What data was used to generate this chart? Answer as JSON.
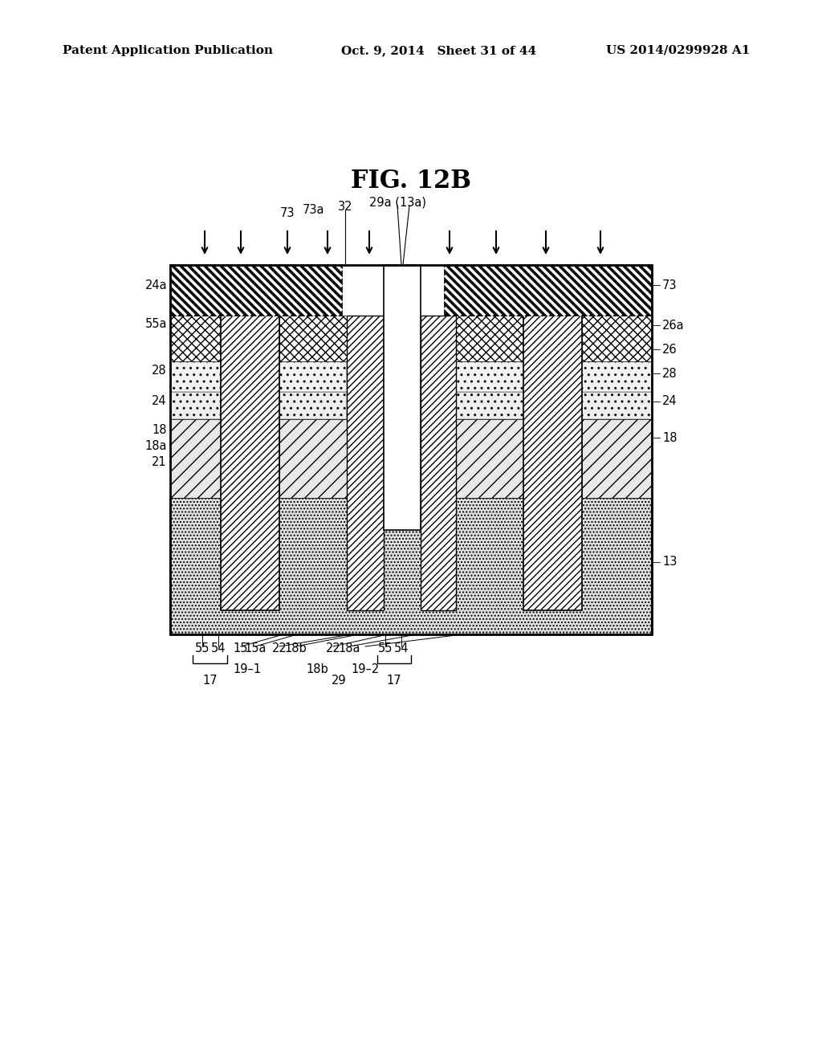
{
  "header_left": "Patent Application Publication",
  "header_center": "Oct. 9, 2014   Sheet 31 of 44",
  "header_right": "US 2014/0299928 A1",
  "fig_title": "FIG. 12B",
  "background_color": "#ffffff",
  "DL": 212,
  "DR": 812,
  "DT": 330,
  "DB": 790,
  "xL1": 275,
  "xL2": 348,
  "xCL1": 432,
  "xCL2": 478,
  "xGate1": 478,
  "xGate2": 524,
  "xCR1": 524,
  "xCR2": 568,
  "xR1": 652,
  "xR2": 725,
  "yT73": 330,
  "yB73": 393,
  "yT26": 393,
  "yB26": 450,
  "yT28": 450,
  "yB28": 488,
  "yT24": 488,
  "yB24": 522,
  "yT18": 522,
  "yB18": 620,
  "yT13": 620,
  "yB13": 790,
  "yColBot": 760
}
